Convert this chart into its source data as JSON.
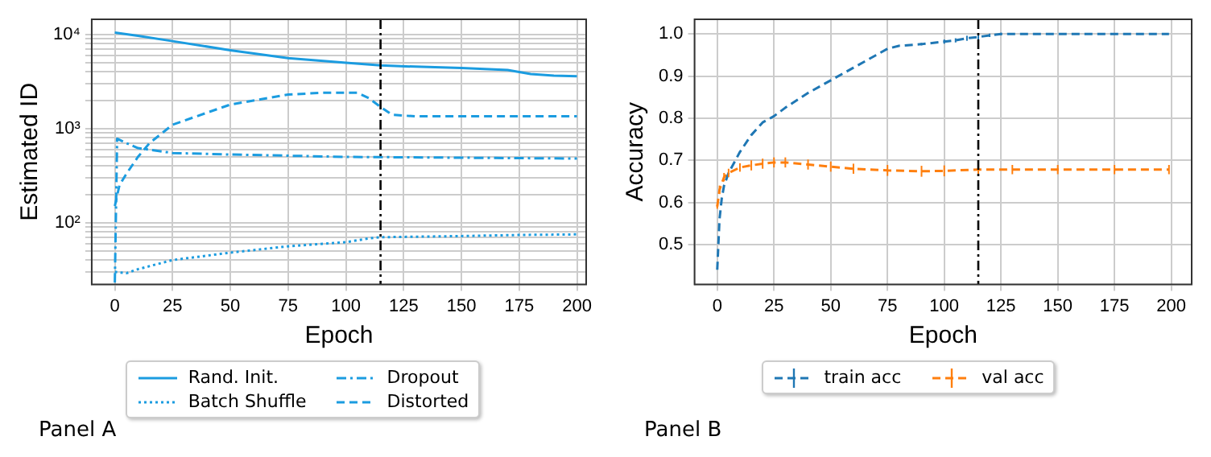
{
  "chart_data": [
    {
      "type": "line",
      "xlabel": "Epoch",
      "ylabel": "Estimated ID",
      "log": "y",
      "grid": true,
      "legend": "bottom",
      "xlim": [
        -10,
        204
      ],
      "xticks": [
        0,
        25,
        50,
        75,
        100,
        125,
        150,
        175,
        200
      ],
      "ylim": [
        22,
        14500
      ],
      "yticks": [
        {
          "value": 30,
          "label": null
        },
        {
          "value": 40,
          "label": null
        },
        {
          "value": 50,
          "label": null
        },
        {
          "value": 60,
          "label": null
        },
        {
          "value": 70,
          "label": null
        },
        {
          "value": 80,
          "label": null
        },
        {
          "value": 90,
          "label": null
        },
        {
          "value": 100,
          "label": "10²"
        },
        {
          "value": 200,
          "label": null
        },
        {
          "value": 300,
          "label": null
        },
        {
          "value": 400,
          "label": null
        },
        {
          "value": 500,
          "label": null
        },
        {
          "value": 600,
          "label": null
        },
        {
          "value": 700,
          "label": null
        },
        {
          "value": 800,
          "label": null
        },
        {
          "value": 900,
          "label": null
        },
        {
          "value": 1000,
          "label": "10³"
        },
        {
          "value": 2000,
          "label": null
        },
        {
          "value": 3000,
          "label": null
        },
        {
          "value": 4000,
          "label": null
        },
        {
          "value": 5000,
          "label": null
        },
        {
          "value": 6000,
          "label": null
        },
        {
          "value": 7000,
          "label": null
        },
        {
          "value": 8000,
          "label": null
        },
        {
          "value": 9000,
          "label": null
        },
        {
          "value": 10000,
          "label": "10⁴"
        }
      ],
      "ref_lines": [
        {
          "axis": "x",
          "value": 115,
          "color": "#000000",
          "line_style": "dashdot"
        }
      ],
      "annotations": [
        "Panel A"
      ],
      "series": [
        {
          "name": "Rand. Init.",
          "color": "#1b9ce0",
          "line_style": "solid",
          "x": [
            0,
            10,
            25,
            50,
            75,
            100,
            115,
            130,
            150,
            170,
            180,
            190,
            200
          ],
          "values": [
            10500,
            9700,
            8500,
            6800,
            5600,
            5000,
            4700,
            4550,
            4400,
            4200,
            3800,
            3650,
            3600
          ]
        },
        {
          "name": "Batch Shuffle",
          "color": "#1b9ce0",
          "line_style": "dotted",
          "x": [
            0,
            5,
            10,
            25,
            50,
            75,
            100,
            110,
            115,
            150,
            175,
            200
          ],
          "values": [
            30,
            29,
            32,
            40,
            48,
            56,
            62,
            68,
            70,
            72,
            74,
            75
          ]
        },
        {
          "name": "Dropout",
          "color": "#1b9ce0",
          "line_style": "dashdot",
          "x": [
            0,
            1,
            5,
            10,
            25,
            50,
            100,
            150,
            200
          ],
          "values": [
            23,
            780,
            700,
            620,
            550,
            530,
            500,
            490,
            480
          ]
        },
        {
          "name": "Distorted",
          "color": "#1b9ce0",
          "line_style": "dashed",
          "x": [
            0,
            2,
            5,
            10,
            15,
            25,
            50,
            75,
            90,
            105,
            110,
            115,
            120,
            130,
            150,
            200
          ],
          "values": [
            150,
            250,
            330,
            500,
            700,
            1100,
            1800,
            2300,
            2400,
            2400,
            2100,
            1700,
            1400,
            1350,
            1350,
            1350
          ]
        }
      ]
    },
    {
      "type": "line",
      "xlabel": "Epoch",
      "ylabel": "Accuracy",
      "grid": true,
      "legend": "bottom",
      "xlim": [
        -10,
        209
      ],
      "xticks": [
        0,
        25,
        50,
        75,
        100,
        125,
        150,
        175,
        200
      ],
      "ylim": [
        0.405,
        1.035
      ],
      "yticks": [
        {
          "value": 0.5,
          "label": "0.5"
        },
        {
          "value": 0.6,
          "label": "0.6"
        },
        {
          "value": 0.7,
          "label": "0.7"
        },
        {
          "value": 0.8,
          "label": "0.8"
        },
        {
          "value": 0.9,
          "label": "0.9"
        },
        {
          "value": 1.0,
          "label": "1.0"
        }
      ],
      "ref_lines": [
        {
          "axis": "x",
          "value": 115,
          "color": "#000000",
          "line_style": "dashdot"
        }
      ],
      "annotations": [
        "Panel B"
      ],
      "series": [
        {
          "name": "train acc",
          "color": "#1f77b4",
          "line_style": "dashed",
          "x": [
            0,
            1,
            2,
            3,
            5,
            8,
            10,
            15,
            20,
            25,
            30,
            40,
            50,
            60,
            70,
            75,
            80,
            90,
            100,
            105,
            110,
            115,
            120,
            125,
            130,
            150,
            175,
            199
          ],
          "values": [
            0.44,
            0.56,
            0.61,
            0.64,
            0.67,
            0.7,
            0.72,
            0.76,
            0.79,
            0.805,
            0.825,
            0.86,
            0.89,
            0.92,
            0.95,
            0.965,
            0.972,
            0.976,
            0.982,
            0.985,
            0.99,
            0.993,
            0.997,
            1.0,
            1.0,
            1.0,
            1.0,
            1.0
          ],
          "errors": [
            null,
            null,
            null,
            null,
            null,
            null,
            null,
            null,
            null,
            null,
            null,
            null,
            null,
            null,
            null,
            null,
            null,
            0.003,
            0.005,
            0.005,
            0.006,
            0.006,
            0.004,
            0.003,
            null,
            null,
            null,
            null
          ]
        },
        {
          "name": "val acc",
          "color": "#ff7f0e",
          "line_style": "dashed",
          "x": [
            0,
            1,
            3,
            5,
            10,
            15,
            20,
            25,
            30,
            40,
            50,
            60,
            75,
            90,
            100,
            115,
            130,
            150,
            175,
            199
          ],
          "values": [
            0.59,
            0.63,
            0.66,
            0.67,
            0.683,
            0.688,
            0.692,
            0.695,
            0.695,
            0.69,
            0.685,
            0.68,
            0.676,
            0.674,
            0.675,
            0.678,
            0.678,
            0.678,
            0.678,
            0.678
          ],
          "errors": [
            0.005,
            0.01,
            0.01,
            0.01,
            0.01,
            0.012,
            0.012,
            0.012,
            0.012,
            0.012,
            0.012,
            0.012,
            0.013,
            0.013,
            0.013,
            0.012,
            0.011,
            0.011,
            0.011,
            0.011
          ]
        }
      ]
    }
  ]
}
